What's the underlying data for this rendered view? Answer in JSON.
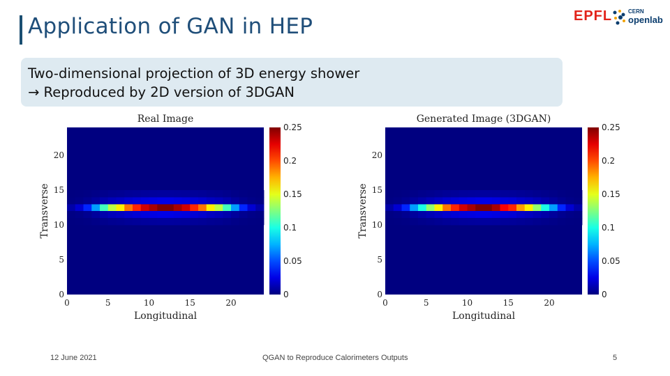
{
  "slide": {
    "title": "Application of GAN in HEP",
    "logo_epfl": "EPFL",
    "logo_cern_small": "CERN",
    "logo_openlab": "openlab",
    "callout_line1": "Two-dimensional projection of 3D energy shower",
    "callout_arrow": "→",
    "callout_line2": "Reproduced by 2D version of 3DGAN"
  },
  "chart_data": [
    {
      "type": "heatmap",
      "title": "Real Image",
      "xlabel": "Longitudinal",
      "ylabel": "Transverse",
      "x_ticks": [
        "0",
        "5",
        "10",
        "15",
        "20"
      ],
      "y_ticks": [
        "0",
        "5",
        "10",
        "15",
        "20"
      ],
      "xlim": [
        0,
        24
      ],
      "ylim": [
        0,
        24
      ],
      "colorbar_ticks": [
        "0",
        "0.05",
        "0.1",
        "0.15",
        "0.2",
        "0.25"
      ],
      "colorbar_range": [
        0,
        0.25
      ],
      "shower": {
        "center_transverse": 12,
        "peak_longitudinal": 12,
        "peak_value": 0.25,
        "longitudinal_values": [
          0.01,
          0.02,
          0.04,
          0.07,
          0.11,
          0.14,
          0.16,
          0.19,
          0.21,
          0.23,
          0.24,
          0.25,
          0.25,
          0.24,
          0.23,
          0.21,
          0.19,
          0.16,
          0.14,
          0.11,
          0.07,
          0.04,
          0.02,
          0.01
        ],
        "transverse_profile": {
          "0": 1.0,
          "1": 0.1,
          "2": 0.03
        }
      }
    },
    {
      "type": "heatmap",
      "title": "Generated Image (3DGAN)",
      "xlabel": "Longitudinal",
      "ylabel": "Transverse",
      "x_ticks": [
        "0",
        "5",
        "10",
        "15",
        "20"
      ],
      "y_ticks": [
        "0",
        "5",
        "10",
        "15",
        "20"
      ],
      "xlim": [
        0,
        24
      ],
      "ylim": [
        0,
        24
      ],
      "colorbar_ticks": [
        "0",
        "0.05",
        "0.1",
        "0.15",
        "0.2",
        "0.25"
      ],
      "colorbar_range": [
        0,
        0.25
      ],
      "shower": {
        "center_transverse": 12,
        "peak_longitudinal": 12,
        "peak_value": 0.25,
        "longitudinal_values": [
          0.01,
          0.02,
          0.04,
          0.07,
          0.1,
          0.13,
          0.16,
          0.19,
          0.21,
          0.23,
          0.24,
          0.25,
          0.25,
          0.24,
          0.22,
          0.21,
          0.18,
          0.16,
          0.13,
          0.1,
          0.07,
          0.04,
          0.02,
          0.01
        ],
        "transverse_profile": {
          "0": 1.0,
          "1": 0.1,
          "2": 0.03
        }
      }
    }
  ],
  "footer": {
    "date": "12 June 2021",
    "center": "QGAN to Reproduce Calorimeters Outputs",
    "page_number": "5"
  }
}
